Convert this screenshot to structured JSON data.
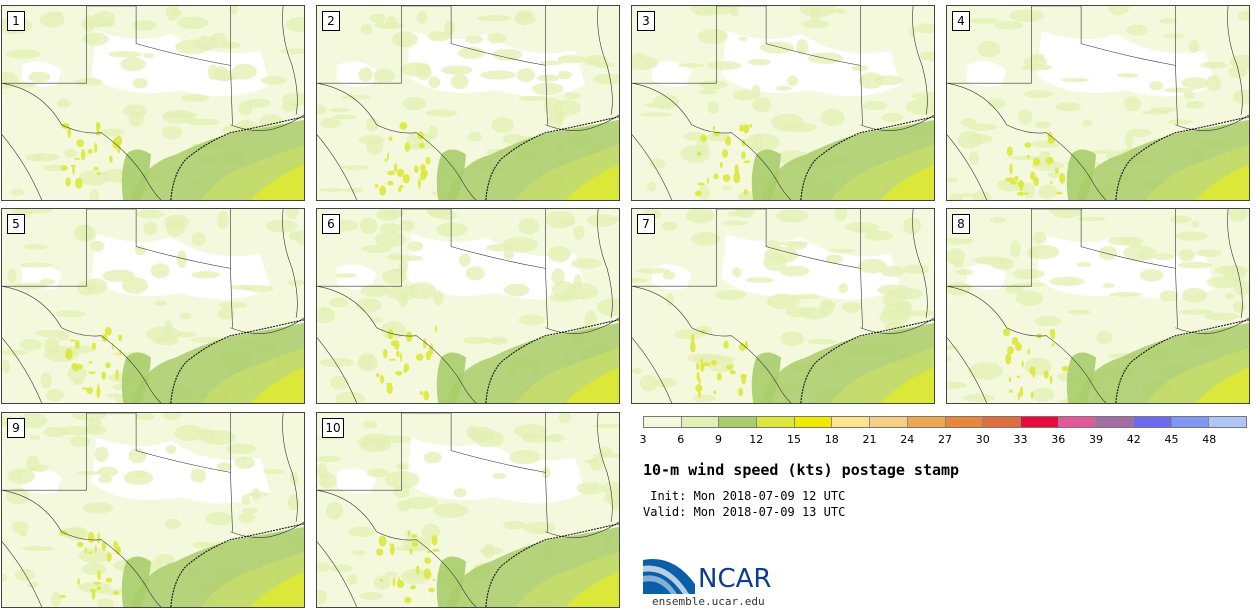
{
  "panels": [
    {
      "label": "1"
    },
    {
      "label": "2"
    },
    {
      "label": "3"
    },
    {
      "label": "4"
    },
    {
      "label": "5"
    },
    {
      "label": "6"
    },
    {
      "label": "7"
    },
    {
      "label": "8"
    },
    {
      "label": "9"
    },
    {
      "label": "10"
    }
  ],
  "colorbar": {
    "colors": [
      "#f4f8dc",
      "#e3f0b4",
      "#a9cd6a",
      "#dbe83a",
      "#f2e900",
      "#fbe48c",
      "#f7cf84",
      "#eea651",
      "#e6873b",
      "#de6e3c",
      "#ea0a3c",
      "#e25998",
      "#a26ea4",
      "#6a6bf0",
      "#7e98f4",
      "#aec6f6"
    ],
    "ticks": [
      "3",
      "6",
      "9",
      "12",
      "15",
      "18",
      "21",
      "24",
      "27",
      "30",
      "33",
      "36",
      "39",
      "42",
      "45",
      "48"
    ]
  },
  "title": "10-m wind speed (kts) postage stamp",
  "init": " Init: Mon 2018-07-09 12 UTC",
  "valid": "Valid: Mon 2018-07-09 13 UTC",
  "logo": {
    "text": "NCAR",
    "color": "#0b3d91"
  },
  "site": "ensemble.ucar.edu"
}
